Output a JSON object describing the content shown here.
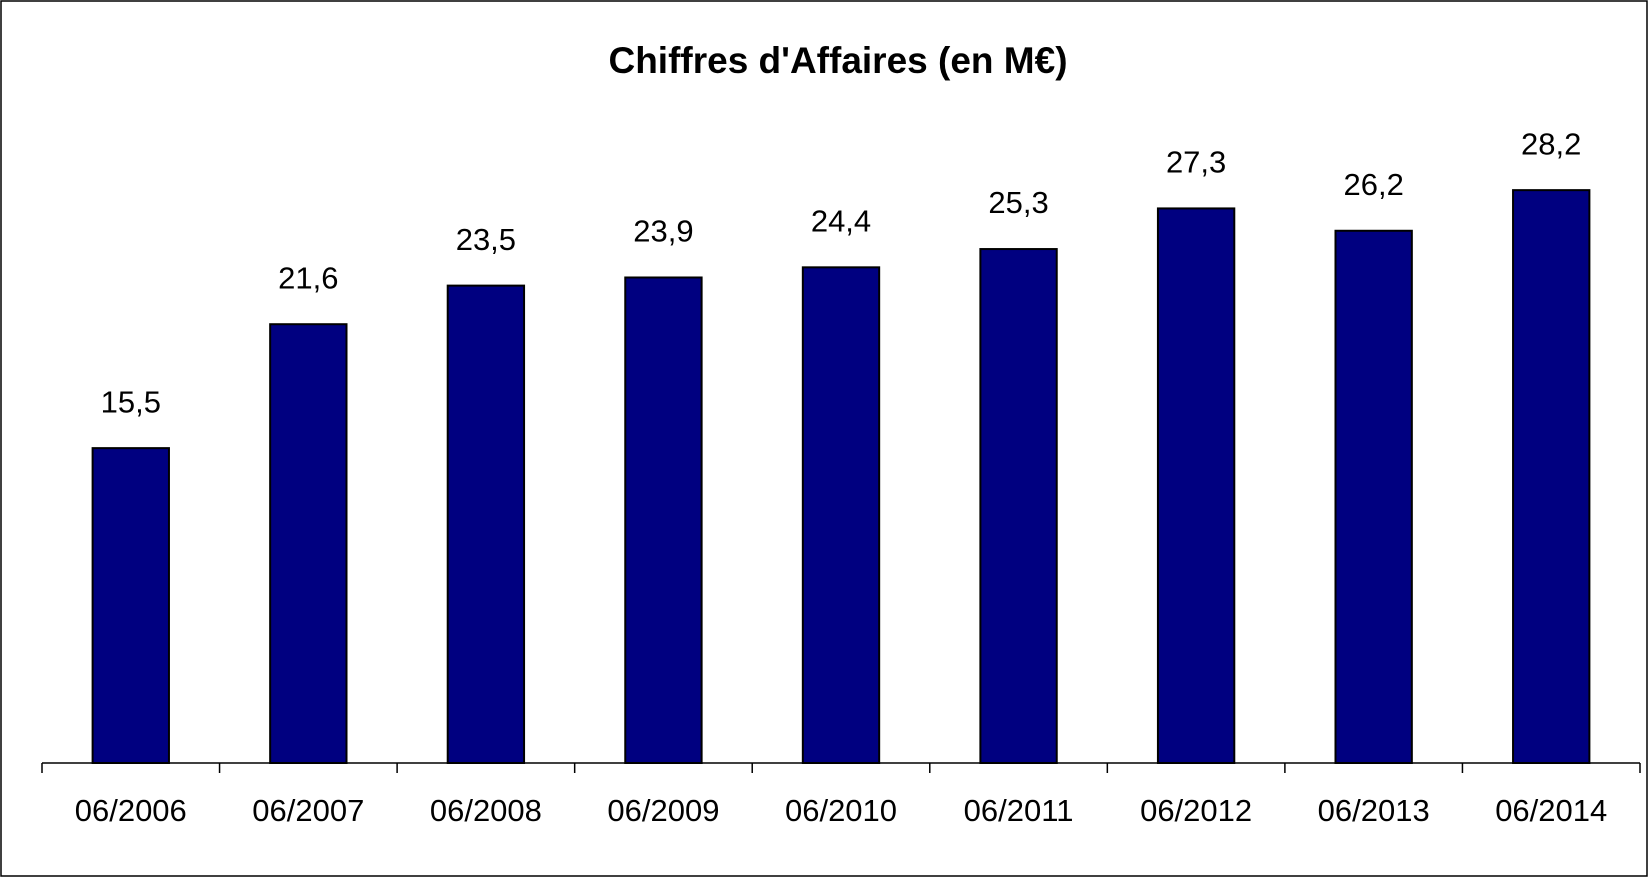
{
  "chart_data": {
    "type": "bar",
    "title": "Chiffres d'Affaires (en M€)",
    "categories": [
      "06/2006",
      "06/2007",
      "06/2008",
      "06/2009",
      "06/2010",
      "06/2011",
      "06/2012",
      "06/2013",
      "06/2014"
    ],
    "values": [
      15.5,
      21.6,
      23.5,
      23.9,
      24.4,
      25.3,
      27.3,
      26.2,
      28.2
    ],
    "value_labels": [
      "15,5",
      "21,6",
      "23,5",
      "23,9",
      "24,4",
      "25,3",
      "27,3",
      "26,2",
      "28,2"
    ],
    "color": "#000080",
    "ylim": [
      0,
      35
    ]
  }
}
